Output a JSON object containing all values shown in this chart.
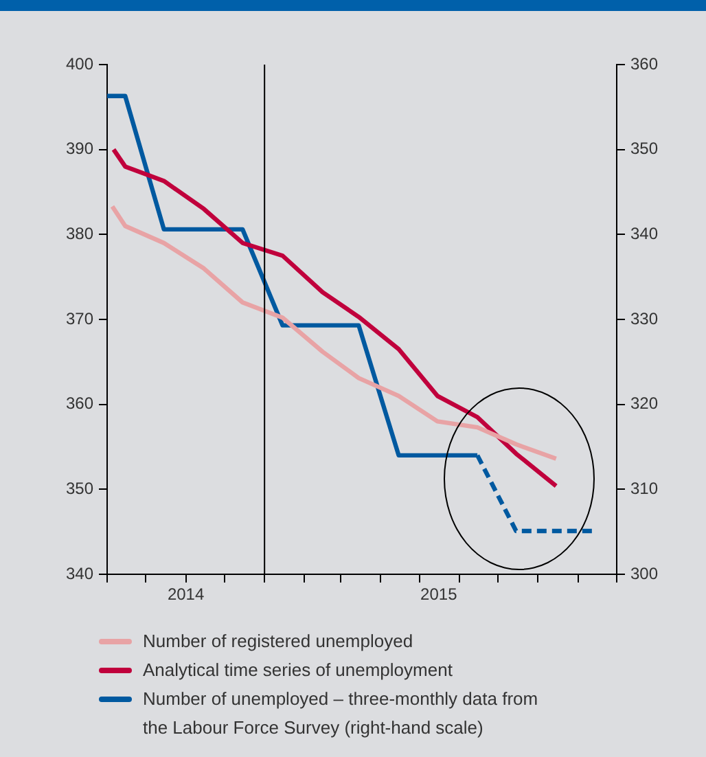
{
  "chart_data": {
    "type": "line",
    "xlim": [
      "2014-09-01",
      "2015-10-01"
    ],
    "xticks": [
      {
        "value": "2014-09-01",
        "label": null
      },
      {
        "value": "2014-10-01",
        "label": null
      },
      {
        "value": "2014-11-01",
        "label": "2014"
      },
      {
        "value": "2014-12-01",
        "label": null
      },
      {
        "value": "2015-01-01",
        "label": null
      },
      {
        "value": "2015-02-01",
        "label": null
      },
      {
        "value": "2015-03-01",
        "label": null
      },
      {
        "value": "2015-04-01",
        "label": null
      },
      {
        "value": "2015-05-01",
        "label": null
      },
      {
        "value": "2015-05-16",
        "label": "2015"
      },
      {
        "value": "2015-06-01",
        "label": null
      },
      {
        "value": "2015-07-01",
        "label": null
      },
      {
        "value": "2015-08-01",
        "label": null
      },
      {
        "value": "2015-09-01",
        "label": null
      },
      {
        "value": "2015-10-01",
        "label": null
      }
    ],
    "ylim": [
      340,
      400
    ],
    "yticks": [
      340,
      350,
      360,
      370,
      380,
      390,
      400
    ],
    "y2lim": [
      300,
      360
    ],
    "y2ticks": [
      300,
      310,
      320,
      330,
      340,
      350,
      360
    ],
    "series": [
      {
        "name": "Number of registered unemployed",
        "color": "#e8a3a5",
        "x": [
          "2014-09-05",
          "2014-09-15",
          "2014-10-15",
          "2014-11-15",
          "2014-12-15",
          "2015-01-15",
          "2015-02-15",
          "2015-03-15",
          "2015-04-15",
          "2015-05-15",
          "2015-06-15",
          "2015-07-15",
          "2015-08-15"
        ],
        "values": [
          383.3,
          381,
          379,
          376,
          372,
          370.2,
          366.2,
          363.1,
          361,
          358,
          357.3,
          355.3,
          353.6
        ]
      },
      {
        "name": "Analytical time series of unemployment",
        "color": "#c0003c",
        "x": [
          "2014-09-06",
          "2014-09-15",
          "2014-10-15",
          "2014-11-15",
          "2014-12-15",
          "2015-01-15",
          "2015-02-15",
          "2015-03-15",
          "2015-04-15",
          "2015-05-15",
          "2015-06-15",
          "2015-07-15",
          "2015-08-15"
        ],
        "values": [
          390,
          388,
          386.3,
          383,
          379,
          377.5,
          373.2,
          370.3,
          366.5,
          361,
          358.5,
          354.2,
          350.4
        ]
      },
      {
        "name": "Number of unemployed – three-monthly data from the Labour Force Survey (right-hand scale)",
        "color": "#0059a0",
        "axis": "y2",
        "line_style": "solid",
        "x": [
          "2014-09-01",
          "2014-09-15",
          "2014-10-15",
          "2014-12-15",
          "2015-01-15",
          "2015-03-15",
          "2015-04-15",
          "2015-06-15"
        ],
        "values": [
          356.3,
          356.3,
          340.6,
          340.6,
          329.3,
          329.3,
          314,
          314
        ]
      },
      {
        "color": "#0059a0",
        "axis": "y2",
        "line_style": "dashed",
        "x": [
          "2015-06-15",
          "2015-07-15",
          "2015-09-15"
        ],
        "values": [
          314,
          305.1,
          305.1
        ]
      }
    ],
    "ref_lines": [
      {
        "axis": "x",
        "value": "2015-01-01",
        "color": "#000000"
      }
    ],
    "grid": false,
    "legend": "bottom"
  }
}
